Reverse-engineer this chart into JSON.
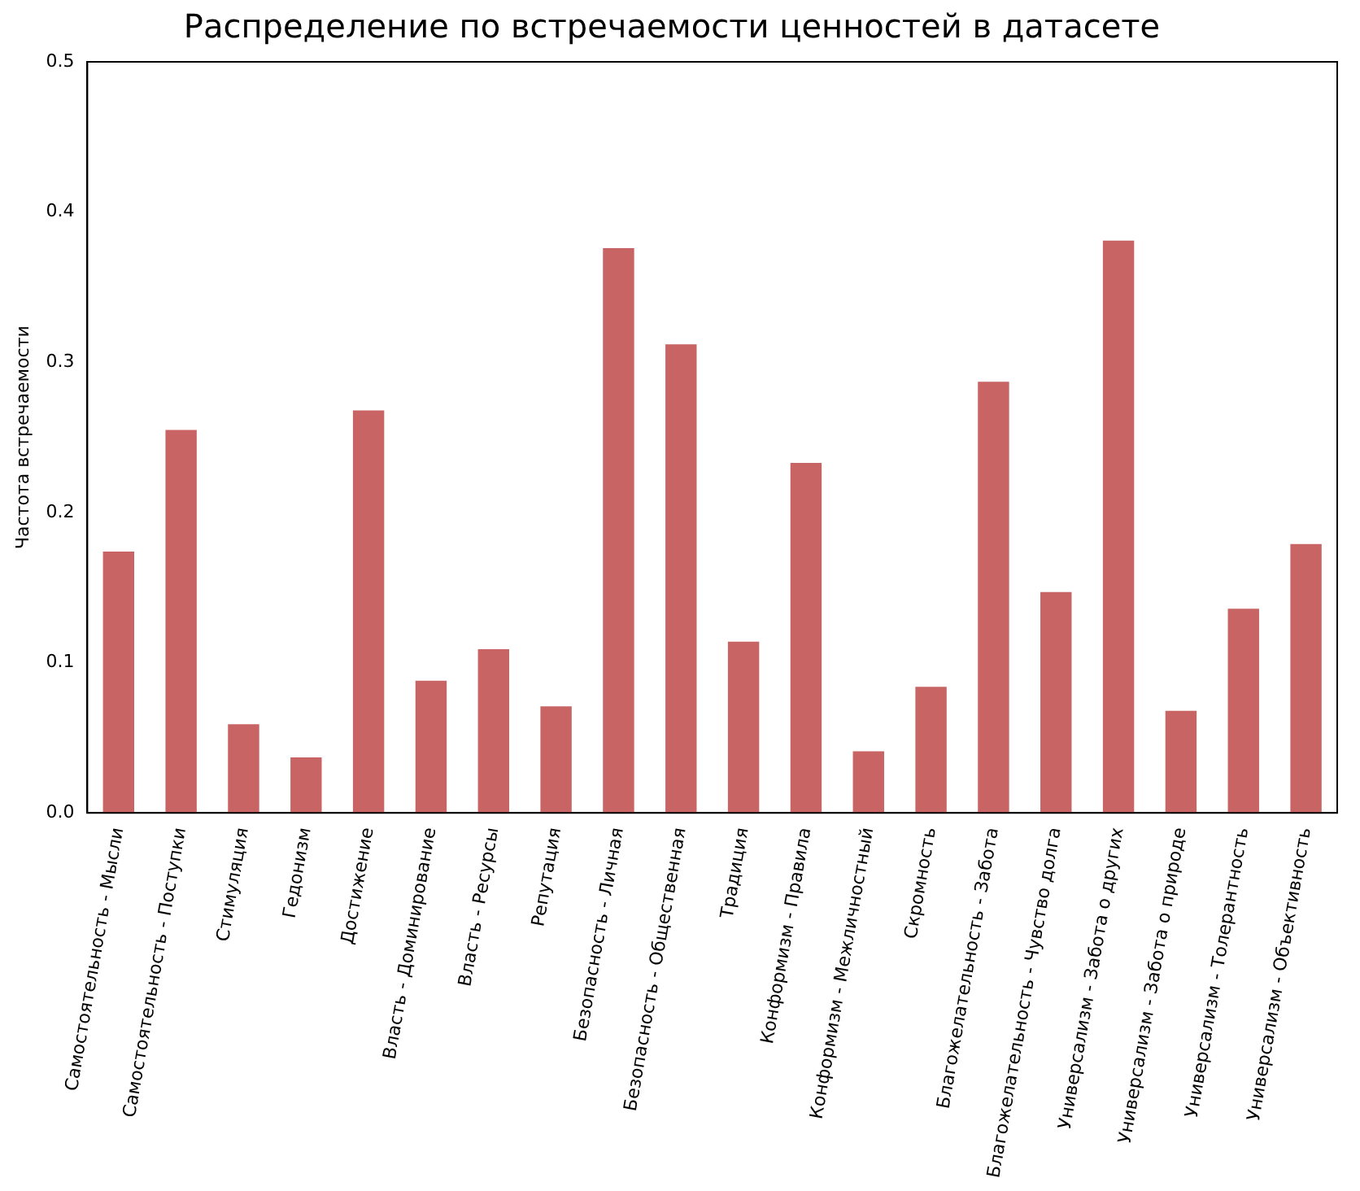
{
  "chart_data": {
    "type": "bar",
    "title": "Распределение по встречаемости ценностей в датасете",
    "ylabel": "Частота встречаемости",
    "categories": [
      "Самостоятельность - Мысли",
      "Самостоятельность - Поступки",
      "Стимуляция",
      "Гедонизм",
      "Достижение",
      "Власть - Доминирование",
      "Власть - Ресурсы",
      "Репутация",
      "Безопасность - Личная",
      "Безопасность - Общественная",
      "Традиция",
      "Конформизм - Правила",
      "Конформизм - Межличностный",
      "Скромность",
      "Благожелательность - Забота",
      "Благожелательность - Чувство долга",
      "Универсализм - Забота о других",
      "Универсализм - Забота о природе",
      "Универсализм - Толерантность",
      "Универсализм - Объективность"
    ],
    "values": [
      0.174,
      0.255,
      0.059,
      0.037,
      0.268,
      0.088,
      0.109,
      0.071,
      0.376,
      0.312,
      0.114,
      0.233,
      0.041,
      0.084,
      0.287,
      0.147,
      0.381,
      0.068,
      0.136,
      0.179
    ],
    "color": "#c86464",
    "ylim": [
      0,
      0.5
    ],
    "yticks": [
      {
        "value": 0,
        "label": "0.0"
      },
      {
        "value": 0.1,
        "label": "0.1"
      },
      {
        "value": 0.2,
        "label": "0.2"
      },
      {
        "value": 0.3,
        "label": "0.3"
      },
      {
        "value": 0.4,
        "label": "0.4"
      },
      {
        "value": 0.5,
        "label": "0.5"
      }
    ],
    "grid": false,
    "legend": false
  }
}
